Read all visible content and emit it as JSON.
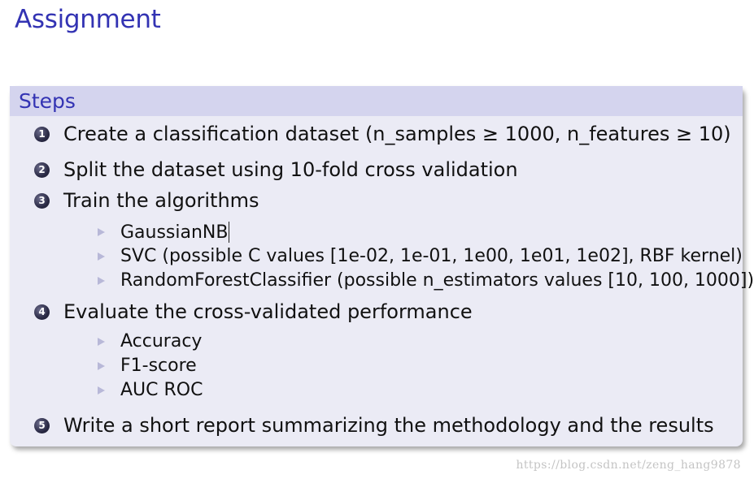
{
  "slide": {
    "title": "Assignment"
  },
  "block": {
    "header": "Steps",
    "steps": [
      {
        "number": "1",
        "text": "Create a classification dataset (n_samples ≥ 1000, n_features ≥ 10)"
      },
      {
        "number": "2",
        "text": "Split the dataset using 10-fold cross validation"
      },
      {
        "number": "3",
        "text": "Train the algorithms",
        "sub": [
          "GaussianNB",
          "SVC (possible C values [1e-02, 1e-01, 1e00, 1e01, 1e02], RBF kernel)",
          "RandomForestClassifier (possible n_estimators values [10, 100, 1000])"
        ]
      },
      {
        "number": "4",
        "text": "Evaluate the cross-validated performance",
        "sub": [
          "Accuracy",
          "F1-score",
          "AUC ROC"
        ]
      },
      {
        "number": "5",
        "text": "Write a short report summarizing the methodology and the results"
      }
    ]
  },
  "watermark": "https://blog.csdn.net/zeng_hang9878",
  "colors": {
    "title": "#3333b3",
    "header_bg": "#d4d4ee",
    "body_bg": "#ebebf5",
    "bullet_arrow": "#b8b8d8",
    "watermark": "#c4c4c4"
  }
}
